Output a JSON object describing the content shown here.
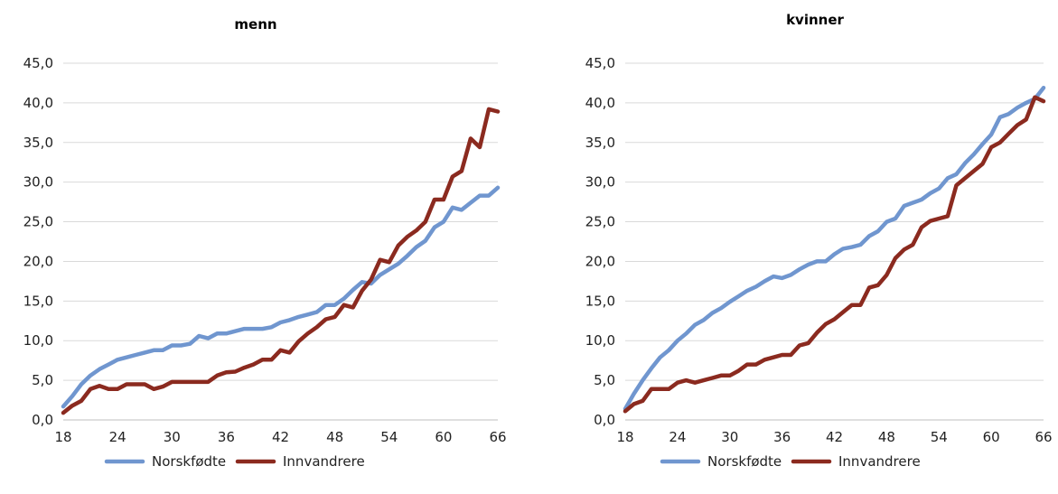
{
  "colors": {
    "norskfodte": "#7096cf",
    "innvandrere": "#8b2a1f"
  },
  "chart_data": [
    {
      "type": "line",
      "title": "menn",
      "xlabel": "",
      "ylabel": "",
      "xlim": [
        18,
        66
      ],
      "ylim": [
        0,
        45
      ],
      "xticks": [
        "18",
        "24",
        "30",
        "36",
        "42",
        "48",
        "54",
        "60",
        "66"
      ],
      "yticks": [
        "0,0",
        "5,0",
        "10,0",
        "15,0",
        "20,0",
        "25,0",
        "30,0",
        "35,0",
        "40,0",
        "45,0"
      ],
      "x": [
        18,
        19,
        20,
        21,
        22,
        23,
        24,
        25,
        26,
        27,
        28,
        29,
        30,
        31,
        32,
        33,
        34,
        35,
        36,
        37,
        38,
        39,
        40,
        41,
        42,
        43,
        44,
        45,
        46,
        47,
        48,
        49,
        50,
        51,
        52,
        53,
        54,
        55,
        56,
        57,
        58,
        59,
        60,
        61,
        62,
        63,
        64,
        65,
        66
      ],
      "series": [
        {
          "name": "Norskfødte",
          "color": "#7096cf",
          "values": [
            1.7,
            3.0,
            4.5,
            5.6,
            6.4,
            7.0,
            7.6,
            7.9,
            8.2,
            8.5,
            8.8,
            8.8,
            9.4,
            9.4,
            9.6,
            10.6,
            10.3,
            10.9,
            10.9,
            11.2,
            11.5,
            11.5,
            11.5,
            11.7,
            12.3,
            12.6,
            13.0,
            13.3,
            13.6,
            14.5,
            14.5,
            15.3,
            16.4,
            17.4,
            17.2,
            18.3,
            19.0,
            19.7,
            20.7,
            21.8,
            22.6,
            24.3,
            25.0,
            26.8,
            26.5,
            27.4,
            28.3,
            28.3,
            29.3
          ]
        },
        {
          "name": "Innvandrere",
          "color": "#8b2a1f",
          "values": [
            0.9,
            1.8,
            2.4,
            3.9,
            4.3,
            3.9,
            3.9,
            4.5,
            4.5,
            4.5,
            3.9,
            4.2,
            4.8,
            4.8,
            4.8,
            4.8,
            4.8,
            5.6,
            6.0,
            6.1,
            6.6,
            7.0,
            7.6,
            7.6,
            8.8,
            8.5,
            9.9,
            10.9,
            11.7,
            12.7,
            13.0,
            14.5,
            14.2,
            16.3,
            17.7,
            20.2,
            19.9,
            22.0,
            23.1,
            23.9,
            25.0,
            27.8,
            27.8,
            30.7,
            31.4,
            35.5,
            34.4,
            39.2,
            38.9
          ]
        }
      ],
      "legend": "bottom",
      "grid": "horizontal"
    },
    {
      "type": "line",
      "title": "kvinner",
      "xlabel": "",
      "ylabel": "",
      "xlim": [
        18,
        66
      ],
      "ylim": [
        0,
        45
      ],
      "xticks": [
        "18",
        "24",
        "30",
        "36",
        "42",
        "48",
        "54",
        "60",
        "66"
      ],
      "yticks": [
        "0,0",
        "5,0",
        "10,0",
        "15,0",
        "20,0",
        "25,0",
        "30,0",
        "35,0",
        "40,0",
        "45,0"
      ],
      "x": [
        18,
        19,
        20,
        21,
        22,
        23,
        24,
        25,
        26,
        27,
        28,
        29,
        30,
        31,
        32,
        33,
        34,
        35,
        36,
        37,
        38,
        39,
        40,
        41,
        42,
        43,
        44,
        45,
        46,
        47,
        48,
        49,
        50,
        51,
        52,
        53,
        54,
        55,
        56,
        57,
        58,
        59,
        60,
        61,
        62,
        63,
        64,
        65,
        66
      ],
      "series": [
        {
          "name": "Norskfødte",
          "color": "#7096cf",
          "values": [
            1.4,
            3.3,
            5.0,
            6.5,
            7.9,
            8.8,
            10.0,
            10.9,
            12.0,
            12.6,
            13.5,
            14.1,
            14.9,
            15.6,
            16.3,
            16.8,
            17.5,
            18.1,
            17.9,
            18.3,
            19.0,
            19.6,
            20.0,
            20.0,
            20.9,
            21.6,
            21.8,
            22.1,
            23.2,
            23.8,
            25.0,
            25.4,
            27.0,
            27.4,
            27.8,
            28.6,
            29.2,
            30.5,
            31.0,
            32.4,
            33.5,
            34.8,
            36.0,
            38.2,
            38.6,
            39.4,
            40.0,
            40.5,
            41.9
          ]
        },
        {
          "name": "Innvandrere",
          "color": "#8b2a1f",
          "values": [
            1.1,
            2.0,
            2.4,
            3.9,
            3.9,
            3.9,
            4.7,
            5.0,
            4.7,
            5.0,
            5.3,
            5.6,
            5.6,
            6.2,
            7.0,
            7.0,
            7.6,
            7.9,
            8.2,
            8.2,
            9.4,
            9.7,
            11.0,
            12.1,
            12.7,
            13.6,
            14.5,
            14.5,
            16.7,
            17.0,
            18.3,
            20.4,
            21.5,
            22.1,
            24.3,
            25.1,
            25.4,
            25.7,
            29.6,
            30.5,
            31.4,
            32.3,
            34.4,
            35.0,
            36.1,
            37.2,
            37.9,
            40.7,
            40.2
          ]
        }
      ],
      "legend": "bottom",
      "grid": "horizontal"
    }
  ]
}
